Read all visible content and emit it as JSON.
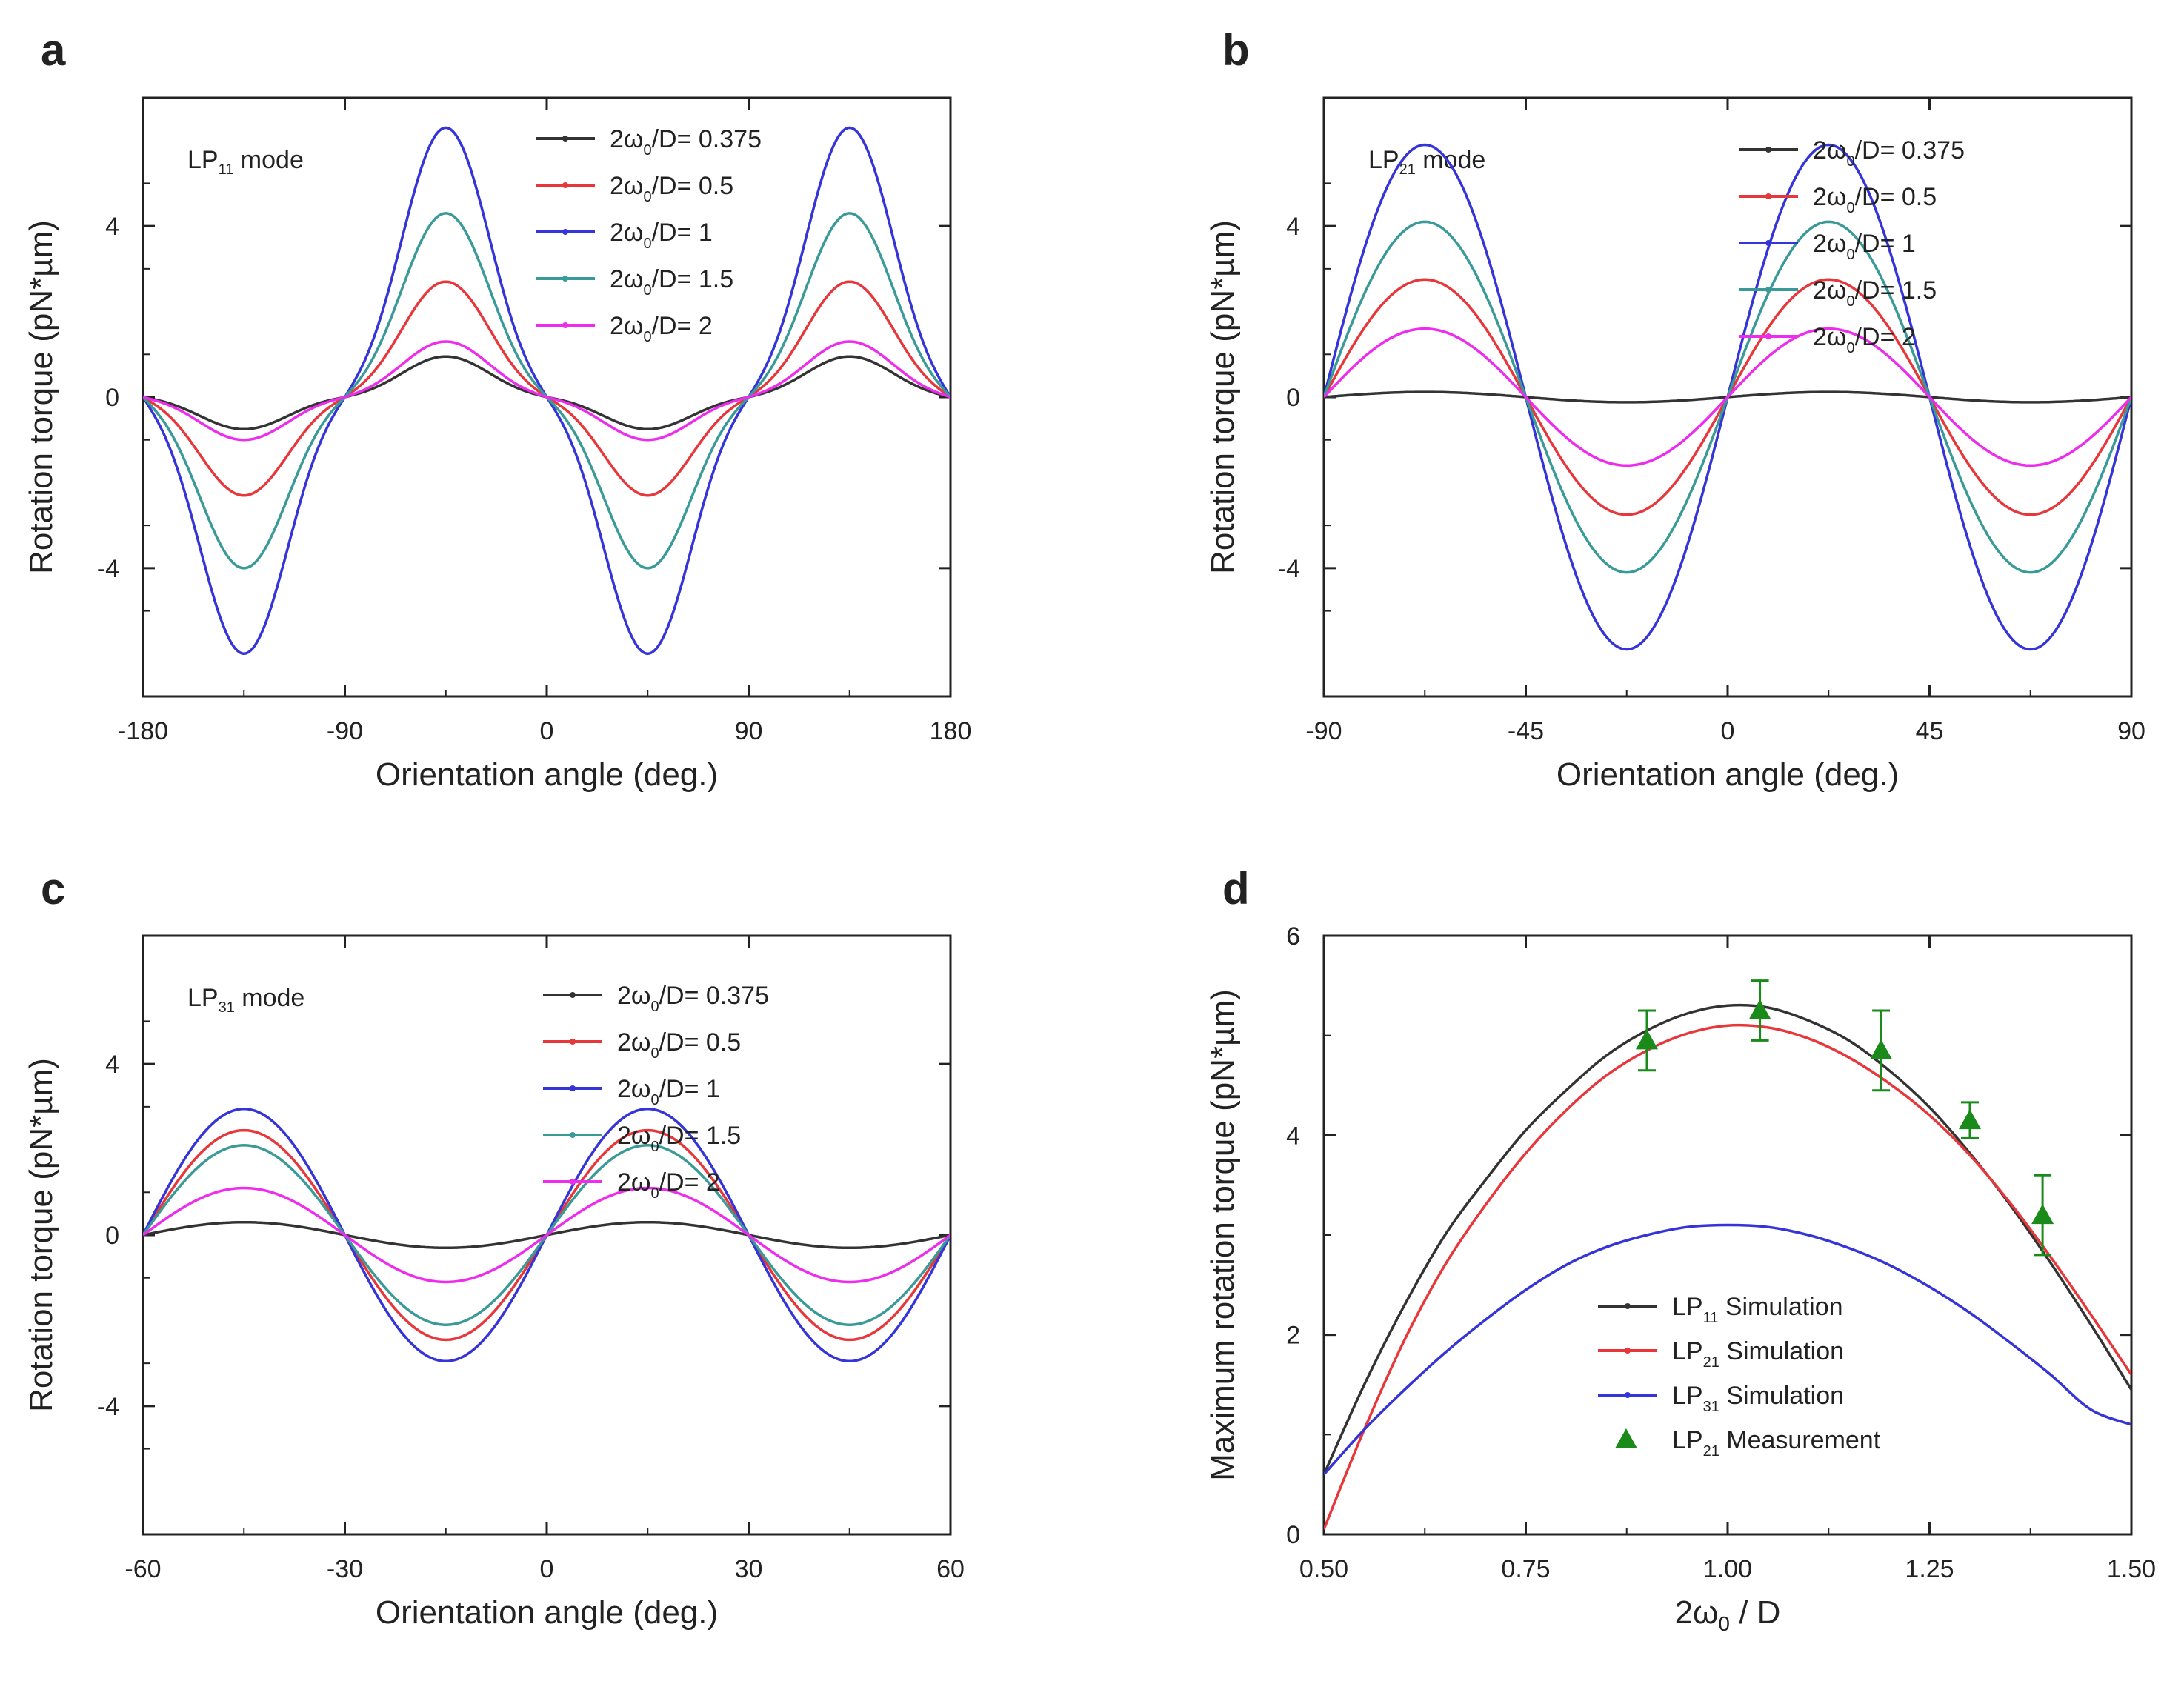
{
  "figure": {
    "panels": [
      {
        "label": "a",
        "mode_text": "LP",
        "mode_sub": "11",
        "mode_suffix": " mode"
      },
      {
        "label": "b",
        "mode_text": "LP",
        "mode_sub": "21",
        "mode_suffix": " mode"
      },
      {
        "label": "c",
        "mode_text": "LP",
        "mode_sub": "31",
        "mode_suffix": " mode"
      },
      {
        "label": "d"
      }
    ]
  },
  "colors": {
    "black": "#333333",
    "red": "#e8373b",
    "blue": "#3434d8",
    "teal": "#3a9a98",
    "magenta": "#ee2cee",
    "green": "#1a8a1a"
  },
  "chart_data": [
    {
      "type": "line",
      "panel": "a",
      "title": "LP11 mode",
      "xlabel": "Orientation angle (deg.)",
      "ylabel": "Rotation torque (pN*µm)",
      "xlim": [
        -180,
        180
      ],
      "ylim": [
        -7,
        7
      ],
      "xticks": [
        -180,
        -90,
        0,
        90,
        180
      ],
      "xtick_labels": [
        "-180",
        "-90",
        "0",
        "90",
        "180"
      ],
      "yticks": [
        -4,
        0,
        4
      ],
      "ytick_labels": [
        "-4",
        "0",
        "4"
      ],
      "function": "amplitude*sin(2*x) with pinched peaks",
      "period_deg": 180,
      "series": [
        {
          "name": "2ω₀/D= 0.375",
          "legend_prefix": "2ω",
          "legend_sub": "0",
          "legend_suffix": "/D= 0.375",
          "color_key": "black",
          "amplitude": -0.75,
          "peak_value": 0.95
        },
        {
          "name": "2ω₀/D= 0.5",
          "legend_prefix": "2ω",
          "legend_sub": "0",
          "legend_suffix": "/D= 0.5",
          "color_key": "red",
          "amplitude": -2.3,
          "peak_value": 2.7
        },
        {
          "name": "2ω₀/D= 1",
          "legend_prefix": "2ω",
          "legend_sub": "0",
          "legend_suffix": "/D= 1",
          "color_key": "blue",
          "amplitude": -6.0,
          "peak_value": 6.3
        },
        {
          "name": "2ω₀/D= 1.5",
          "legend_prefix": "2ω",
          "legend_sub": "0",
          "legend_suffix": "/D= 1.5",
          "color_key": "teal",
          "amplitude": -4.0,
          "peak_value": 4.3
        },
        {
          "name": "2ω₀/D= 2",
          "legend_prefix": "2ω",
          "legend_sub": "0",
          "legend_suffix": "/D= 2",
          "color_key": "magenta",
          "amplitude": -1.0,
          "peak_value": 1.3
        }
      ]
    },
    {
      "type": "line",
      "panel": "b",
      "title": "LP21 mode",
      "xlabel": "Orientation angle (deg.)",
      "ylabel": "Rotation torque (pN*µm)",
      "xlim": [
        -90,
        90
      ],
      "ylim": [
        -7,
        7
      ],
      "xticks": [
        -90,
        -45,
        0,
        45,
        90
      ],
      "xtick_labels": [
        "-90",
        "-45",
        "0",
        "45",
        "90"
      ],
      "yticks": [
        -4,
        0,
        4
      ],
      "ytick_labels": [
        "-4",
        "0",
        "4"
      ],
      "function": "amplitude*sin(4*x)",
      "period_deg": 90,
      "series": [
        {
          "name": "2ω₀/D= 0.375",
          "legend_prefix": "2ω",
          "legend_sub": "0",
          "legend_suffix": "/D= 0.375",
          "color_key": "black",
          "amplitude": 0.12,
          "peak_value": 0.12
        },
        {
          "name": "2ω₀/D= 0.5",
          "legend_prefix": "2ω",
          "legend_sub": "0",
          "legend_suffix": "/D= 0.5",
          "color_key": "red",
          "amplitude": 2.75,
          "peak_value": 2.75
        },
        {
          "name": "2ω₀/D= 1",
          "legend_prefix": "2ω",
          "legend_sub": "0",
          "legend_suffix": "/D= 1",
          "color_key": "blue",
          "amplitude": 5.9,
          "peak_value": 5.9
        },
        {
          "name": "2ω₀/D= 1.5",
          "legend_prefix": "2ω",
          "legend_sub": "0",
          "legend_suffix": "/D= 1.5",
          "color_key": "teal",
          "amplitude": 4.1,
          "peak_value": 4.1
        },
        {
          "name": "2ω₀/D= 2",
          "legend_prefix": "2ω",
          "legend_sub": "0",
          "legend_suffix": "/D= 2",
          "color_key": "magenta",
          "amplitude": 1.6,
          "peak_value": 1.6
        }
      ]
    },
    {
      "type": "line",
      "panel": "c",
      "title": "LP31 mode",
      "xlabel": "Orientation angle (deg.)",
      "ylabel": "Rotation torque (pN*µm)",
      "xlim": [
        -60,
        60
      ],
      "ylim": [
        -7,
        7
      ],
      "xticks": [
        -60,
        -30,
        0,
        30,
        60
      ],
      "xtick_labels": [
        "-60",
        "-30",
        "0",
        "30",
        "60"
      ],
      "yticks": [
        -4,
        0,
        4
      ],
      "ytick_labels": [
        "-4",
        "0",
        "4"
      ],
      "function": "amplitude*sin(6*x)",
      "period_deg": 60,
      "series": [
        {
          "name": "2ω₀/D= 0.375",
          "legend_prefix": "2ω",
          "legend_sub": "0",
          "legend_suffix": "/D= 0.375",
          "color_key": "black",
          "amplitude": 0.3,
          "peak_value": 0.3
        },
        {
          "name": "2ω₀/D= 0.5",
          "legend_prefix": "2ω",
          "legend_sub": "0",
          "legend_suffix": "/D= 0.5",
          "color_key": "red",
          "amplitude": 2.45,
          "peak_value": 2.45
        },
        {
          "name": "2ω₀/D= 1",
          "legend_prefix": "2ω",
          "legend_sub": "0",
          "legend_suffix": "/D= 1",
          "color_key": "blue",
          "amplitude": 2.95,
          "peak_value": 2.95
        },
        {
          "name": "2ω₀/D= 1.5",
          "legend_prefix": "2ω",
          "legend_sub": "0",
          "legend_suffix": "/D= 1.5",
          "color_key": "teal",
          "amplitude": 2.1,
          "peak_value": 2.1
        },
        {
          "name": "2ω₀/D= 2",
          "legend_prefix": "2ω",
          "legend_sub": "0",
          "legend_suffix": "/D= 2",
          "color_key": "magenta",
          "amplitude": 1.1,
          "peak_value": 1.1
        }
      ]
    },
    {
      "type": "line",
      "panel": "d",
      "title": "",
      "xlabel": "2ω₀ / D",
      "xlabel_prefix": "2ω",
      "xlabel_sub": "0",
      "xlabel_suffix": " / D",
      "ylabel": "Maximum rotation torque (pN*µm)",
      "xlim": [
        0.5,
        1.5
      ],
      "ylim": [
        0,
        6
      ],
      "xticks": [
        0.5,
        0.75,
        1.0,
        1.25,
        1.5
      ],
      "xtick_labels": [
        "0.50",
        "0.75",
        "1.00",
        "1.25",
        "1.50"
      ],
      "yticks": [
        0,
        2,
        4,
        6
      ],
      "ytick_labels": [
        "0",
        "2",
        "4",
        "6"
      ],
      "series": [
        {
          "name": "LP11 Simulation",
          "legend_prefix": "LP",
          "legend_sub": "11",
          "legend_suffix": " Simulation",
          "color_key": "black",
          "x": [
            0.5,
            0.55,
            0.6,
            0.65,
            0.7,
            0.75,
            0.8,
            0.85,
            0.9,
            0.95,
            1.0,
            1.05,
            1.1,
            1.15,
            1.2,
            1.25,
            1.3,
            1.35,
            1.4,
            1.45,
            1.5
          ],
          "y": [
            0.6,
            1.5,
            2.3,
            3.0,
            3.55,
            4.05,
            4.45,
            4.8,
            5.05,
            5.22,
            5.3,
            5.28,
            5.15,
            4.95,
            4.65,
            4.28,
            3.82,
            3.3,
            2.72,
            2.1,
            1.45
          ]
        },
        {
          "name": "LP21 Simulation",
          "legend_prefix": "LP",
          "legend_sub": "21",
          "legend_suffix": " Simulation",
          "color_key": "red",
          "x": [
            0.5,
            0.55,
            0.6,
            0.65,
            0.7,
            0.75,
            0.8,
            0.85,
            0.9,
            0.95,
            1.0,
            1.05,
            1.1,
            1.15,
            1.2,
            1.25,
            1.3,
            1.35,
            1.4,
            1.45,
            1.5
          ],
          "y": [
            0.05,
            1.05,
            1.95,
            2.7,
            3.3,
            3.82,
            4.25,
            4.6,
            4.85,
            5.02,
            5.1,
            5.08,
            4.97,
            4.78,
            4.52,
            4.2,
            3.8,
            3.32,
            2.78,
            2.2,
            1.6
          ]
        },
        {
          "name": "LP31 Simulation",
          "legend_prefix": "LP",
          "legend_sub": "31",
          "legend_suffix": " Simulation",
          "color_key": "blue",
          "x": [
            0.5,
            0.55,
            0.6,
            0.65,
            0.7,
            0.75,
            0.8,
            0.85,
            0.9,
            0.95,
            1.0,
            1.05,
            1.1,
            1.15,
            1.2,
            1.25,
            1.3,
            1.35,
            1.4,
            1.45,
            1.5
          ],
          "y": [
            0.6,
            1.05,
            1.45,
            1.82,
            2.15,
            2.45,
            2.7,
            2.88,
            3.0,
            3.08,
            3.1,
            3.08,
            3.0,
            2.87,
            2.7,
            2.48,
            2.22,
            1.92,
            1.6,
            1.25,
            1.1
          ]
        },
        {
          "name": "LP21 Measurement",
          "legend_prefix": "LP",
          "legend_sub": "21",
          "legend_suffix": " Measurement",
          "color_key": "green",
          "marker": "triangle",
          "x": [
            0.9,
            1.04,
            1.19,
            1.3,
            1.39
          ],
          "y": [
            4.95,
            5.25,
            4.85,
            4.15,
            3.2
          ],
          "yerr": [
            0.3,
            0.3,
            0.4,
            0.18,
            0.4
          ]
        }
      ]
    }
  ]
}
